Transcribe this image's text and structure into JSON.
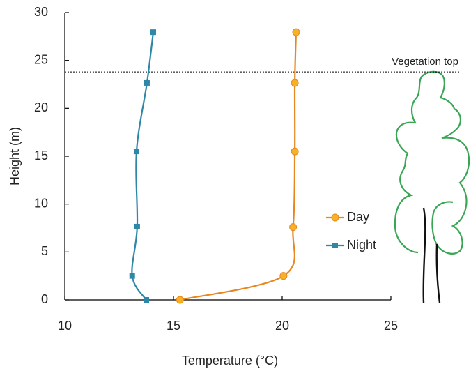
{
  "chart_data": {
    "type": "line",
    "xlabel": "Temperature (°C)",
    "ylabel": "Height (m)",
    "xlim": [
      10,
      25
    ],
    "xticks": [
      10,
      15,
      20,
      25
    ],
    "ylim": [
      0,
      30
    ],
    "yticks": [
      0,
      5,
      10,
      15,
      20,
      25,
      30
    ],
    "legend": "center right",
    "hline": {
      "value": 23.8,
      "label": "Vegetation top"
    },
    "series": [
      {
        "name": "Day",
        "color": "#e8861f",
        "marker": "circle",
        "marker_color": "#f5b324",
        "x": [
          15.3,
          20.06,
          20.5,
          20.58,
          20.58,
          20.64
        ],
        "values": [
          0,
          2.5,
          7.6,
          15.5,
          22.65,
          27.95
        ]
      },
      {
        "name": "Night",
        "color": "#2f87a8",
        "marker": "square",
        "marker_color": "#2f87a8",
        "x": [
          13.75,
          13.1,
          13.33,
          13.3,
          13.78,
          14.07
        ],
        "values": [
          0,
          2.5,
          7.65,
          15.5,
          22.65,
          27.95
        ]
      }
    ]
  }
}
